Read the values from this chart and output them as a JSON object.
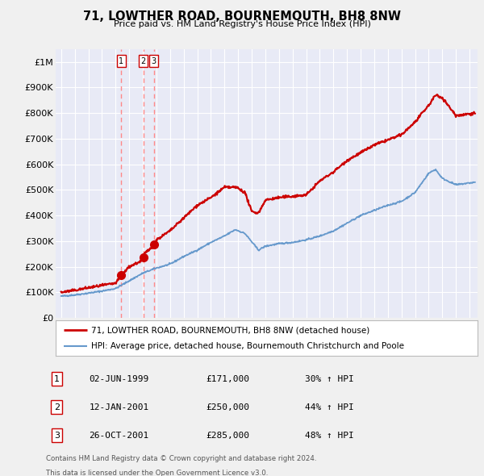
{
  "title": "71, LOWTHER ROAD, BOURNEMOUTH, BH8 8NW",
  "subtitle": "Price paid vs. HM Land Registry's House Price Index (HPI)",
  "bg_color": "#f0f0f0",
  "plot_bg_color": "#e8eaf6",
  "grid_color": "#ffffff",
  "hpi_color": "#6699cc",
  "price_color": "#cc0000",
  "dashed_color": "#ff8888",
  "ylim": [
    0,
    1050000
  ],
  "yticks": [
    0,
    100000,
    200000,
    300000,
    400000,
    500000,
    600000,
    700000,
    800000,
    900000,
    1000000
  ],
  "ytick_labels": [
    "£0",
    "£100K",
    "£200K",
    "£300K",
    "£400K",
    "£500K",
    "£600K",
    "£700K",
    "£800K",
    "£900K",
    "£1M"
  ],
  "xlim_start": 1994.6,
  "xlim_end": 2025.6,
  "transactions": [
    {
      "num": 1,
      "date": "02-JUN-1999",
      "year": 1999.42,
      "price": 171000,
      "pct": "30%",
      "dir": "↑"
    },
    {
      "num": 2,
      "date": "12-JAN-2001",
      "year": 2001.04,
      "price": 250000,
      "pct": "44%",
      "dir": "↑"
    },
    {
      "num": 3,
      "date": "26-OCT-2001",
      "year": 2001.82,
      "price": 285000,
      "pct": "48%",
      "dir": "↑"
    }
  ],
  "legend_line1": "71, LOWTHER ROAD, BOURNEMOUTH, BH8 8NW (detached house)",
  "legend_line2": "HPI: Average price, detached house, Bournemouth Christchurch and Poole",
  "footnote1": "Contains HM Land Registry data © Crown copyright and database right 2024.",
  "footnote2": "This data is licensed under the Open Government Licence v3.0."
}
